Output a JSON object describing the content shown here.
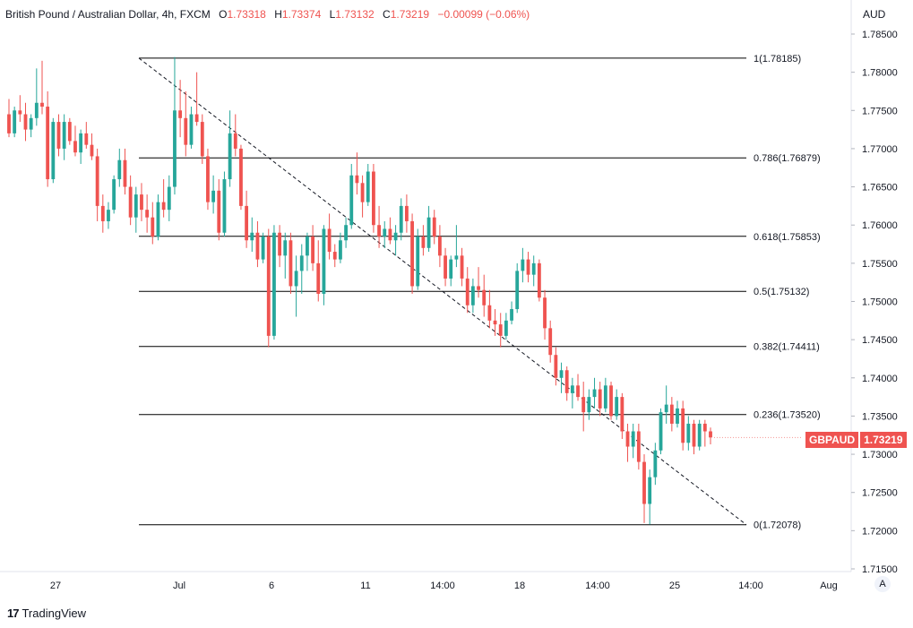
{
  "header": {
    "symbol": "British Pound / Australian Dollar, 4h, FXCM",
    "o_label": "O",
    "o_value": "1.73318",
    "h_label": "H",
    "h_value": "1.73374",
    "l_label": "L",
    "l_value": "1.73132",
    "c_label": "C",
    "c_value": "1.73219",
    "change": "−0.00099 (−0.06%)"
  },
  "currency": "AUD",
  "last_price": {
    "symbol": "GBPAUD",
    "value": "1.73219"
  },
  "scale_button": "A",
  "brand": {
    "logo": "17",
    "name": "TradingView"
  },
  "colors": {
    "up": "#26a69a",
    "down": "#ef5350",
    "fib_line": "#000000",
    "axis_text": "#131722"
  },
  "chart_data": {
    "type": "candlestick",
    "ylim": [
      1.715,
      1.7865
    ],
    "yticks": [
      "1.78500",
      "1.78000",
      "1.77500",
      "1.77000",
      "1.76500",
      "1.76000",
      "1.75500",
      "1.75000",
      "1.74500",
      "1.74000",
      "1.73500",
      "1.73000",
      "1.72500",
      "1.72000",
      "1.71500"
    ],
    "xticks": [
      "27",
      "Jul",
      "6",
      "11",
      "14:00",
      "18",
      "14:00",
      "25",
      "14:00",
      "Aug"
    ],
    "fib_levels": [
      {
        "label": "1(1.78185)",
        "value": 1.78185
      },
      {
        "label": "0.786(1.76879)",
        "value": 1.76879
      },
      {
        "label": "0.618(1.75853)",
        "value": 1.75853
      },
      {
        "label": "0.5(1.75132)",
        "value": 1.75132
      },
      {
        "label": "0.382(1.74411)",
        "value": 1.74411
      },
      {
        "label": "0.236(1.73520)",
        "value": 1.7352
      },
      {
        "label": "0(1.72078)",
        "value": 1.72078
      }
    ],
    "trendline": {
      "from": 1.78185,
      "to": 1.72078
    },
    "candles": [
      [
        1.7745,
        1.7765,
        1.7715,
        1.772
      ],
      [
        1.772,
        1.7755,
        1.7715,
        1.775
      ],
      [
        1.775,
        1.777,
        1.7735,
        1.7745
      ],
      [
        1.7745,
        1.776,
        1.771,
        1.7725
      ],
      [
        1.7725,
        1.7745,
        1.7715,
        1.774
      ],
      [
        1.774,
        1.7805,
        1.773,
        1.776
      ],
      [
        1.776,
        1.7815,
        1.7745,
        1.7755
      ],
      [
        1.7755,
        1.7775,
        1.765,
        1.766
      ],
      [
        1.766,
        1.774,
        1.7655,
        1.7735
      ],
      [
        1.7735,
        1.7745,
        1.769,
        1.77
      ],
      [
        1.77,
        1.7745,
        1.7685,
        1.7735
      ],
      [
        1.7735,
        1.774,
        1.7705,
        1.771
      ],
      [
        1.771,
        1.773,
        1.769,
        1.7695
      ],
      [
        1.7695,
        1.7725,
        1.768,
        1.772
      ],
      [
        1.772,
        1.7735,
        1.77,
        1.7705
      ],
      [
        1.7705,
        1.772,
        1.7685,
        1.769
      ],
      [
        1.769,
        1.77,
        1.7605,
        1.7625
      ],
      [
        1.7625,
        1.764,
        1.759,
        1.7605
      ],
      [
        1.7605,
        1.763,
        1.7595,
        1.762
      ],
      [
        1.762,
        1.7665,
        1.7615,
        1.766
      ],
      [
        1.766,
        1.77,
        1.765,
        1.7685
      ],
      [
        1.7685,
        1.77,
        1.764,
        1.765
      ],
      [
        1.765,
        1.7665,
        1.76,
        1.761
      ],
      [
        1.761,
        1.765,
        1.759,
        1.764
      ],
      [
        1.764,
        1.7655,
        1.7605,
        1.762
      ],
      [
        1.762,
        1.764,
        1.759,
        1.761
      ],
      [
        1.761,
        1.763,
        1.7575,
        1.7585
      ],
      [
        1.7585,
        1.764,
        1.758,
        1.763
      ],
      [
        1.763,
        1.766,
        1.761,
        1.762
      ],
      [
        1.762,
        1.7665,
        1.7605,
        1.765
      ],
      [
        1.765,
        1.782,
        1.764,
        1.775
      ],
      [
        1.775,
        1.779,
        1.7715,
        1.774
      ],
      [
        1.774,
        1.7775,
        1.769,
        1.7705
      ],
      [
        1.7705,
        1.7755,
        1.77,
        1.7745
      ],
      [
        1.7745,
        1.78,
        1.773,
        1.7735
      ],
      [
        1.7735,
        1.7745,
        1.768,
        1.769
      ],
      [
        1.769,
        1.77,
        1.762,
        1.763
      ],
      [
        1.763,
        1.7665,
        1.7615,
        1.7645
      ],
      [
        1.7645,
        1.766,
        1.758,
        1.759
      ],
      [
        1.759,
        1.767,
        1.7585,
        1.766
      ],
      [
        1.766,
        1.775,
        1.765,
        1.772
      ],
      [
        1.772,
        1.7745,
        1.769,
        1.77
      ],
      [
        1.77,
        1.7705,
        1.762,
        1.7625
      ],
      [
        1.7625,
        1.7645,
        1.757,
        1.758
      ],
      [
        1.758,
        1.761,
        1.7565,
        1.759
      ],
      [
        1.759,
        1.7605,
        1.7545,
        1.7555
      ],
      [
        1.7555,
        1.759,
        1.755,
        1.7585
      ],
      [
        1.7585,
        1.7595,
        1.744,
        1.7455
      ],
      [
        1.7455,
        1.76,
        1.745,
        1.759
      ],
      [
        1.759,
        1.76,
        1.7545,
        1.756
      ],
      [
        1.756,
        1.759,
        1.753,
        1.758
      ],
      [
        1.758,
        1.759,
        1.751,
        1.752
      ],
      [
        1.752,
        1.756,
        1.748,
        1.754
      ],
      [
        1.754,
        1.7575,
        1.751,
        1.756
      ],
      [
        1.756,
        1.759,
        1.754,
        1.7585
      ],
      [
        1.7585,
        1.76,
        1.754,
        1.755
      ],
      [
        1.755,
        1.758,
        1.75,
        1.751
      ],
      [
        1.751,
        1.76,
        1.7495,
        1.7595
      ],
      [
        1.7595,
        1.7615,
        1.7555,
        1.7565
      ],
      [
        1.7565,
        1.7575,
        1.7545,
        1.7555
      ],
      [
        1.7555,
        1.759,
        1.755,
        1.758
      ],
      [
        1.758,
        1.761,
        1.757,
        1.76
      ],
      [
        1.76,
        1.768,
        1.7595,
        1.7665
      ],
      [
        1.7665,
        1.7695,
        1.764,
        1.7655
      ],
      [
        1.7655,
        1.7665,
        1.761,
        1.763
      ],
      [
        1.763,
        1.768,
        1.7625,
        1.767
      ],
      [
        1.767,
        1.768,
        1.759,
        1.76
      ],
      [
        1.76,
        1.7625,
        1.757,
        1.7585
      ],
      [
        1.7585,
        1.7605,
        1.757,
        1.7595
      ],
      [
        1.7595,
        1.761,
        1.7575,
        1.758
      ],
      [
        1.758,
        1.76,
        1.756,
        1.759
      ],
      [
        1.759,
        1.7635,
        1.758,
        1.7625
      ],
      [
        1.7625,
        1.764,
        1.759,
        1.7605
      ],
      [
        1.7605,
        1.7615,
        1.751,
        1.752
      ],
      [
        1.752,
        1.7595,
        1.7515,
        1.7585
      ],
      [
        1.7585,
        1.76,
        1.756,
        1.757
      ],
      [
        1.757,
        1.7625,
        1.7565,
        1.761
      ],
      [
        1.761,
        1.762,
        1.7575,
        1.7585
      ],
      [
        1.7585,
        1.76,
        1.7545,
        1.756
      ],
      [
        1.756,
        1.757,
        1.752,
        1.753
      ],
      [
        1.753,
        1.756,
        1.752,
        1.7555
      ],
      [
        1.7555,
        1.76,
        1.7545,
        1.756
      ],
      [
        1.756,
        1.757,
        1.752,
        1.753
      ],
      [
        1.753,
        1.7545,
        1.7485,
        1.7495
      ],
      [
        1.7495,
        1.753,
        1.7485,
        1.752
      ],
      [
        1.752,
        1.7545,
        1.7505,
        1.7515
      ],
      [
        1.7515,
        1.7535,
        1.748,
        1.7495
      ],
      [
        1.7495,
        1.7515,
        1.7465,
        1.7475
      ],
      [
        1.7475,
        1.749,
        1.7455,
        1.747
      ],
      [
        1.747,
        1.7485,
        1.744,
        1.7455
      ],
      [
        1.7455,
        1.7485,
        1.745,
        1.7475
      ],
      [
        1.7475,
        1.75,
        1.747,
        1.749
      ],
      [
        1.749,
        1.755,
        1.7485,
        1.754
      ],
      [
        1.754,
        1.757,
        1.7525,
        1.7555
      ],
      [
        1.7555,
        1.7565,
        1.7525,
        1.7535
      ],
      [
        1.7535,
        1.756,
        1.752,
        1.755
      ],
      [
        1.755,
        1.7555,
        1.75,
        1.7505
      ],
      [
        1.7505,
        1.7515,
        1.745,
        1.7465
      ],
      [
        1.7465,
        1.7475,
        1.742,
        1.743
      ],
      [
        1.743,
        1.744,
        1.739,
        1.74
      ],
      [
        1.74,
        1.742,
        1.738,
        1.741
      ],
      [
        1.741,
        1.7415,
        1.737,
        1.738
      ],
      [
        1.738,
        1.74,
        1.736,
        1.739
      ],
      [
        1.739,
        1.7405,
        1.737,
        1.7375
      ],
      [
        1.7375,
        1.7395,
        1.733,
        1.7355
      ],
      [
        1.7355,
        1.7385,
        1.7345,
        1.7375
      ],
      [
        1.7375,
        1.74,
        1.736,
        1.7385
      ],
      [
        1.7385,
        1.7395,
        1.735,
        1.736
      ],
      [
        1.736,
        1.74,
        1.7355,
        1.739
      ],
      [
        1.739,
        1.7395,
        1.7345,
        1.735
      ],
      [
        1.735,
        1.7385,
        1.7345,
        1.7375
      ],
      [
        1.7375,
        1.738,
        1.732,
        1.733
      ],
      [
        1.733,
        1.734,
        1.729,
        1.731
      ],
      [
        1.731,
        1.734,
        1.7295,
        1.733
      ],
      [
        1.733,
        1.734,
        1.728,
        1.729
      ],
      [
        1.729,
        1.73,
        1.721,
        1.7235
      ],
      [
        1.7235,
        1.728,
        1.7208,
        1.727
      ],
      [
        1.727,
        1.7315,
        1.726,
        1.7305
      ],
      [
        1.7305,
        1.736,
        1.73,
        1.7355
      ],
      [
        1.7355,
        1.739,
        1.734,
        1.7365
      ],
      [
        1.7365,
        1.7375,
        1.733,
        1.734
      ],
      [
        1.734,
        1.737,
        1.7335,
        1.736
      ],
      [
        1.736,
        1.737,
        1.7305,
        1.7315
      ],
      [
        1.7315,
        1.735,
        1.7305,
        1.734
      ],
      [
        1.734,
        1.7345,
        1.73,
        1.731
      ],
      [
        1.731,
        1.7345,
        1.7305,
        1.734
      ],
      [
        1.734,
        1.7345,
        1.731,
        1.733
      ],
      [
        1.733,
        1.7335,
        1.7313,
        1.7322
      ]
    ]
  }
}
